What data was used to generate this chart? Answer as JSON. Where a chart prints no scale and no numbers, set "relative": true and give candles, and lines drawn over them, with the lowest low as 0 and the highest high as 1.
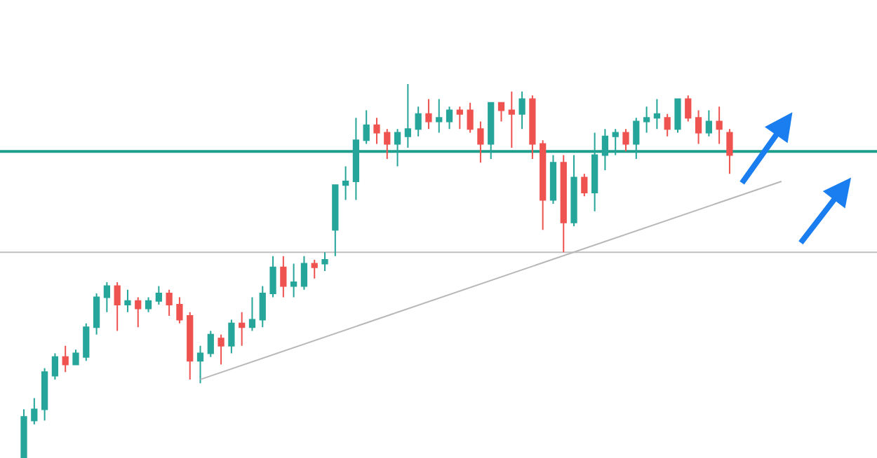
{
  "chart_data": {
    "type": "candlestick",
    "relative": true,
    "categories": [
      null,
      null,
      null,
      null,
      null,
      null,
      null,
      null,
      null,
      null,
      null,
      null,
      null,
      null,
      null,
      null,
      null,
      null,
      null,
      null,
      null,
      null,
      null,
      null,
      null,
      null,
      null,
      null,
      null,
      null,
      null,
      null,
      null,
      null,
      null,
      null,
      null,
      null,
      null,
      null,
      null,
      null,
      null,
      null,
      null,
      null,
      null,
      null,
      null,
      null,
      null,
      null,
      null,
      null,
      null,
      null,
      null,
      null,
      null,
      null,
      null,
      null,
      null,
      null,
      null,
      null,
      null,
      null,
      null,
      null,
      null,
      null,
      null,
      null
    ],
    "ohlc": [
      [
        0,
        0.13,
        0,
        0.11
      ],
      [
        0.1,
        0.16,
        0.09,
        0.13
      ],
      [
        0.13,
        0.24,
        0.1,
        0.23
      ],
      [
        0.22,
        0.28,
        0.21,
        0.27
      ],
      [
        0.27,
        0.3,
        0.23,
        0.25
      ],
      [
        0.25,
        0.29,
        0.25,
        0.28
      ],
      [
        0.27,
        0.36,
        0.26,
        0.35
      ],
      [
        0.35,
        0.44,
        0.33,
        0.43
      ],
      [
        0.43,
        0.47,
        0.39,
        0.46
      ],
      [
        0.46,
        0.47,
        0.34,
        0.41
      ],
      [
        0.41,
        0.45,
        0.39,
        0.42
      ],
      [
        0.42,
        0.43,
        0.35,
        0.4
      ],
      [
        0.4,
        0.43,
        0.39,
        0.42
      ],
      [
        0.42,
        0.46,
        0.41,
        0.44
      ],
      [
        0.44,
        0.45,
        0.38,
        0.41
      ],
      [
        0.41,
        0.43,
        0.36,
        0.37
      ],
      [
        0.38,
        0.39,
        0.21,
        0.26
      ],
      [
        0.26,
        0.3,
        0.2,
        0.28
      ],
      [
        0.28,
        0.34,
        0.27,
        0.33
      ],
      [
        0.32,
        0.33,
        0.25,
        0.3
      ],
      [
        0.3,
        0.37,
        0.28,
        0.36
      ],
      [
        0.36,
        0.39,
        0.3,
        0.35
      ],
      [
        0.35,
        0.43,
        0.34,
        0.37
      ],
      [
        0.37,
        0.46,
        0.35,
        0.44
      ],
      [
        0.44,
        0.54,
        0.43,
        0.51
      ],
      [
        0.51,
        0.54,
        0.43,
        0.46
      ],
      [
        0.46,
        0.52,
        0.43,
        0.47
      ],
      [
        0.46,
        0.54,
        0.45,
        0.52
      ],
      [
        0.52,
        0.53,
        0.48,
        0.51
      ],
      [
        0.52,
        0.55,
        0.5,
        0.53
      ],
      [
        0.61,
        0.73,
        0.54,
        0.73
      ],
      [
        0.73,
        0.78,
        0.69,
        0.74
      ],
      [
        0.74,
        0.91,
        0.69,
        0.85
      ],
      [
        0.85,
        0.93,
        0.84,
        0.89
      ],
      [
        0.89,
        0.91,
        0.84,
        0.87
      ],
      [
        0.87,
        0.88,
        0.8,
        0.84
      ],
      [
        0.84,
        0.88,
        0.78,
        0.87
      ],
      [
        0.86,
        1,
        0.83,
        0.88
      ],
      [
        0.88,
        0.94,
        0.86,
        0.92
      ],
      [
        0.92,
        0.96,
        0.88,
        0.9
      ],
      [
        0.9,
        0.96,
        0.87,
        0.91
      ],
      [
        0.9,
        0.94,
        0.88,
        0.93
      ],
      [
        0.93,
        0.94,
        0.88,
        0.92
      ],
      [
        0.93,
        0.95,
        0.87,
        0.88
      ],
      [
        0.88,
        0.9,
        0.79,
        0.84
      ],
      [
        0.84,
        0.95,
        0.8,
        0.95
      ],
      [
        0.95,
        0.95,
        0.9,
        0.93
      ],
      [
        0.93,
        0.98,
        0.83,
        0.92
      ],
      [
        0.92,
        0.98,
        0.88,
        0.96
      ],
      [
        0.96,
        0.97,
        0.8,
        0.84
      ],
      [
        0.84,
        0.85,
        0.61,
        0.69
      ],
      [
        0.69,
        0.81,
        0.68,
        0.79
      ],
      [
        0.79,
        0.81,
        0.55,
        0.63
      ],
      [
        0.63,
        0.81,
        0.62,
        0.75
      ],
      [
        0.75,
        0.76,
        0.7,
        0.71
      ],
      [
        0.71,
        0.87,
        0.66,
        0.81
      ],
      [
        0.81,
        0.88,
        0.77,
        0.86
      ],
      [
        0.86,
        0.88,
        0.81,
        0.87
      ],
      [
        0.87,
        0.88,
        0.82,
        0.84
      ],
      [
        0.84,
        0.91,
        0.8,
        0.9
      ],
      [
        0.9,
        0.94,
        0.87,
        0.91
      ],
      [
        0.91,
        0.96,
        0.88,
        0.92
      ],
      [
        0.91,
        0.92,
        0.86,
        0.88
      ],
      [
        0.88,
        0.96,
        0.87,
        0.96
      ],
      [
        0.96,
        0.97,
        0.9,
        0.91
      ],
      [
        0.91,
        0.93,
        0.84,
        0.87
      ],
      [
        0.87,
        0.93,
        0.86,
        0.9
      ],
      [
        0.9,
        0.94,
        0.84,
        0.88
      ],
      [
        0.87,
        0.88,
        0.76,
        0.81
      ],
      null,
      null,
      null,
      null,
      null
    ],
    "colors": [
      "#26a69a",
      "#26a69a",
      "#26a69a",
      "#26a69a",
      "#ef5350",
      "#26a69a",
      "#26a69a",
      "#26a69a",
      "#26a69a",
      "#ef5350",
      "#26a69a",
      "#ef5350",
      "#26a69a",
      "#26a69a",
      "#ef5350",
      "#ef5350",
      "#ef5350",
      "#26a69a",
      "#26a69a",
      "#ef5350",
      "#26a69a",
      "#ef5350",
      "#26a69a",
      "#26a69a",
      "#26a69a",
      "#ef5350",
      "#26a69a",
      "#26a69a",
      "#ef5350",
      "#26a69a",
      "#26a69a",
      "#26a69a",
      "#26a69a",
      "#26a69a",
      "#ef5350",
      "#ef5350",
      "#26a69a",
      "#26a69a",
      "#26a69a",
      "#ef5350",
      "#26a69a",
      "#26a69a",
      "#ef5350",
      "#ef5350",
      "#ef5350",
      "#26a69a",
      "#ef5350",
      "#ef5350",
      "#26a69a",
      "#ef5350",
      "#ef5350",
      "#26a69a",
      "#ef5350",
      "#26a69a",
      "#ef5350",
      "#26a69a",
      "#26a69a",
      "#26a69a",
      "#ef5350",
      "#26a69a",
      "#26a69a",
      "#26a69a",
      "#ef5350",
      "#26a69a",
      "#ef5350",
      "#ef5350",
      "#26a69a",
      "#ef5350",
      "#ef5350",
      null,
      null,
      null,
      null,
      null
    ],
    "series": [
      {
        "type": "line",
        "values": [
          null,
          null,
          null,
          null,
          null,
          null,
          null,
          null,
          null,
          null,
          null,
          null,
          null,
          null,
          null,
          null,
          null,
          0.21,
          null,
          null,
          null,
          null,
          null,
          null,
          null,
          null,
          null,
          null,
          null,
          null,
          null,
          null,
          null,
          null,
          null,
          null,
          null,
          null,
          null,
          null,
          null,
          null,
          null,
          null,
          null,
          null,
          null,
          null,
          null,
          null,
          null,
          null,
          null,
          null,
          null,
          null,
          null,
          null,
          null,
          null,
          null,
          null,
          null,
          null,
          null,
          null,
          null,
          null,
          null,
          null,
          null,
          null,
          null,
          0.74
        ],
        "color": "#b8b8b8"
      }
    ],
    "ref_lines": [
      {
        "axis": "y",
        "value": 0.82,
        "color": "#1e9e8c"
      },
      {
        "axis": "y",
        "value": 0.55,
        "color": "#c0c0c0"
      }
    ]
  }
}
